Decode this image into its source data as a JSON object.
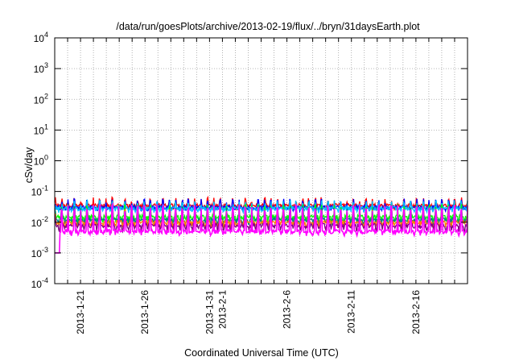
{
  "chart_data": {
    "type": "line",
    "title": "/data/run/goesPlots/archive/2013-02-19/flux/../bryn/31daysEarth.plot",
    "xlabel": "Coordinated Universal Time (UTC)",
    "ylabel": "cSv/day",
    "y_scale": "log",
    "ylim": [
      0.0001,
      10000
    ],
    "xlim": [
      "2013-01-19",
      "2013-02-20"
    ],
    "grid": true,
    "y_ticks": [
      {
        "value": 0.0001,
        "base": "10",
        "exp": "-4"
      },
      {
        "value": 0.001,
        "base": "10",
        "exp": "-3"
      },
      {
        "value": 0.01,
        "base": "10",
        "exp": "-2"
      },
      {
        "value": 0.1,
        "base": "10",
        "exp": "-1"
      },
      {
        "value": 1,
        "base": "10",
        "exp": "0"
      },
      {
        "value": 10,
        "base": "10",
        "exp": "1"
      },
      {
        "value": 100,
        "base": "10",
        "exp": "2"
      },
      {
        "value": 1000,
        "base": "10",
        "exp": "3"
      },
      {
        "value": 10000,
        "base": "10",
        "exp": "4"
      }
    ],
    "x_tick_labels": [
      {
        "date": "2013-01-21",
        "label": "2013-1-21"
      },
      {
        "date": "2013-01-26",
        "label": "2013-1-26"
      },
      {
        "date": "2013-01-31",
        "label": "2013-1-31"
      },
      {
        "date": "2013-02-01",
        "label": "2013-2-1"
      },
      {
        "date": "2013-02-06",
        "label": "2013-2-6"
      },
      {
        "date": "2013-02-11",
        "label": "2013-2-11"
      },
      {
        "date": "2013-02-16",
        "label": "2013-2-16"
      }
    ],
    "series": [
      {
        "color": "#ff0000",
        "values": [
          0.035,
          0.05,
          0.03
        ]
      },
      {
        "color": "#0000ff",
        "values": [
          0.03,
          0.045,
          0.028
        ]
      },
      {
        "color": "#00c0ff",
        "values": [
          0.028,
          0.04,
          0.025
        ]
      },
      {
        "color": "#00ff00",
        "values": [
          0.015,
          0.03,
          0.012
        ]
      },
      {
        "color": "#008080",
        "values": [
          0.012,
          0.025,
          0.01
        ]
      },
      {
        "color": "#ff8000",
        "values": [
          0.01,
          0.02,
          0.008
        ]
      },
      {
        "color": "#800080",
        "values": [
          0.008,
          0.018,
          0.006
        ]
      },
      {
        "color": "#ff00ff",
        "values": [
          0.005,
          0.03,
          0.0045
        ]
      }
    ]
  }
}
